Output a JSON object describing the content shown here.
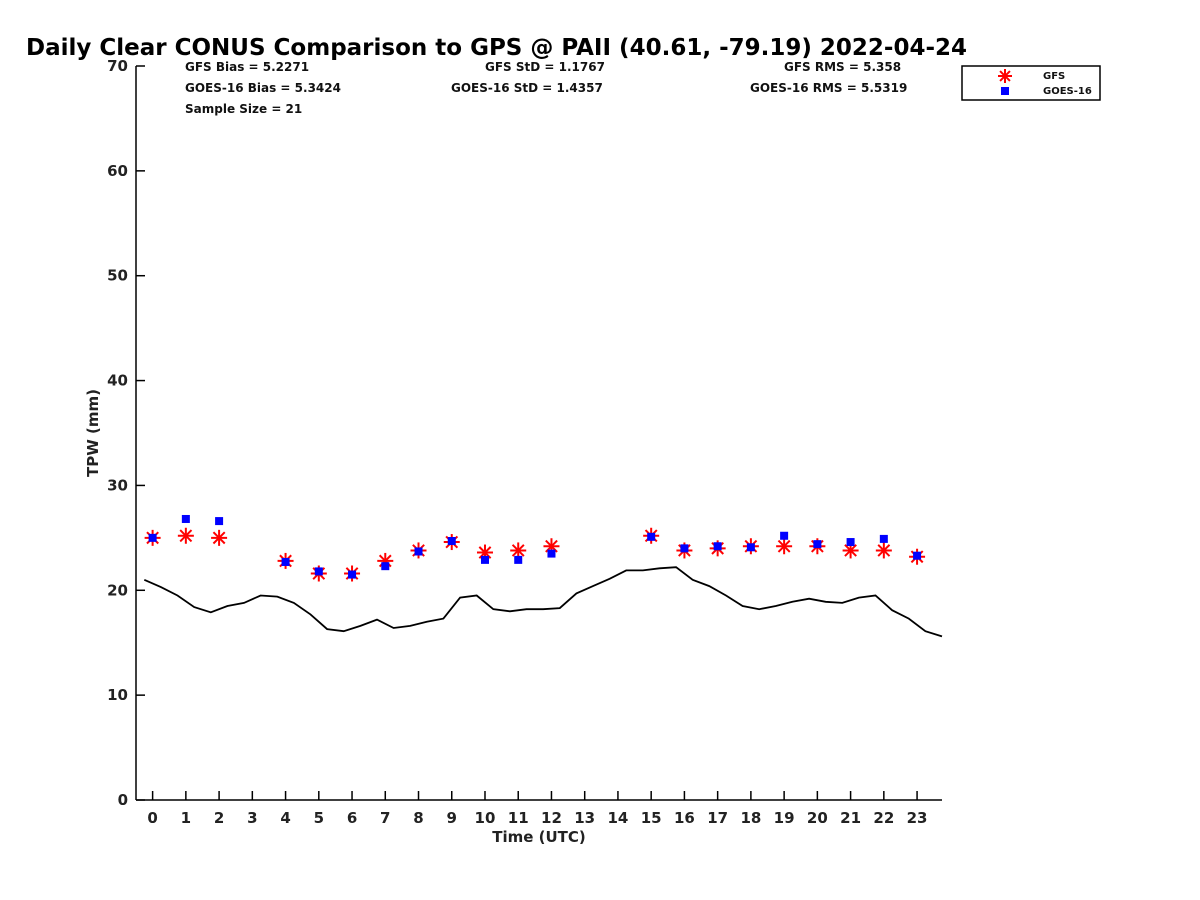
{
  "chart_data": {
    "type": "scatter",
    "title": "Daily Clear CONUS Comparison to GPS @ PAII (40.61, -79.19) 2022-04-24",
    "xlabel": "Time (UTC)",
    "ylabel": "TPW (mm)",
    "xlim": [
      -0.5,
      23.75
    ],
    "ylim": [
      0,
      70
    ],
    "x_ticks": [
      0,
      1,
      2,
      3,
      4,
      5,
      6,
      7,
      8,
      9,
      10,
      11,
      12,
      13,
      14,
      15,
      16,
      17,
      18,
      19,
      20,
      21,
      22,
      23
    ],
    "y_ticks": [
      0,
      10,
      20,
      30,
      40,
      50,
      60,
      70
    ],
    "legend_position": "top-right",
    "stats": {
      "gfs_bias": "GFS Bias = 5.2271",
      "goes_bias": "GOES-16 Bias = 5.3424",
      "sample_size": "Sample Size = 21",
      "gfs_std": "GFS StD = 1.1767",
      "goes_std": "GOES-16 StD = 1.4357",
      "gfs_rms": "GFS RMS = 5.358",
      "goes_rms": "GOES-16 RMS = 5.5319"
    },
    "series": [
      {
        "name": "GFS",
        "marker": "asterisk",
        "color": "#ff0000",
        "x": [
          0,
          1,
          2,
          4,
          5,
          6,
          7,
          8,
          9,
          10,
          11,
          12,
          15,
          16,
          17,
          18,
          19,
          20,
          21,
          22,
          23
        ],
        "y": [
          25.0,
          25.2,
          25.0,
          22.8,
          21.6,
          21.6,
          22.8,
          23.8,
          24.6,
          23.6,
          23.8,
          24.2,
          25.2,
          23.8,
          24.0,
          24.2,
          24.2,
          24.2,
          23.8,
          23.8,
          23.2
        ]
      },
      {
        "name": "GOES-16",
        "marker": "square",
        "color": "#0000ff",
        "x": [
          0,
          1,
          2,
          4,
          5,
          6,
          7,
          8,
          9,
          10,
          11,
          12,
          15,
          16,
          17,
          18,
          19,
          20,
          21,
          22,
          23
        ],
        "y": [
          25.0,
          26.8,
          26.6,
          22.7,
          21.8,
          21.5,
          22.3,
          23.7,
          24.7,
          22.9,
          22.9,
          23.5,
          25.1,
          24.0,
          24.2,
          24.1,
          25.2,
          24.4,
          24.6,
          24.9,
          23.3
        ]
      },
      {
        "marker": "line",
        "color": "#000000",
        "x": [
          -0.25,
          0.25,
          0.75,
          1.25,
          1.75,
          2.25,
          2.75,
          3.25,
          3.75,
          4.25,
          4.75,
          5.25,
          5.75,
          6.25,
          6.75,
          7.25,
          7.75,
          8.25,
          8.75,
          9.25,
          9.75,
          10.25,
          10.75,
          11.25,
          11.75,
          12.25,
          12.75,
          13.25,
          13.75,
          14.25,
          14.75,
          15.25,
          15.75,
          16.25,
          16.75,
          17.25,
          17.75,
          18.25,
          18.75,
          19.25,
          19.75,
          20.25,
          20.75,
          21.25,
          21.75,
          22.25,
          22.75,
          23.25,
          23.75
        ],
        "y": [
          21.0,
          20.3,
          19.5,
          18.4,
          17.9,
          18.5,
          18.8,
          19.5,
          19.4,
          18.8,
          17.7,
          16.3,
          16.1,
          16.6,
          17.2,
          16.4,
          16.6,
          17.0,
          17.3,
          19.3,
          19.5,
          18.2,
          18.0,
          18.2,
          18.2,
          18.3,
          19.7,
          20.4,
          21.1,
          21.9,
          21.9,
          22.1,
          22.2,
          21.0,
          20.4,
          19.5,
          18.5,
          18.2,
          18.5,
          18.9,
          19.2,
          18.9,
          18.8,
          19.3,
          19.5,
          18.1,
          17.3,
          16.1,
          15.6
        ]
      }
    ],
    "legend": [
      "GFS",
      "GOES-16"
    ]
  }
}
